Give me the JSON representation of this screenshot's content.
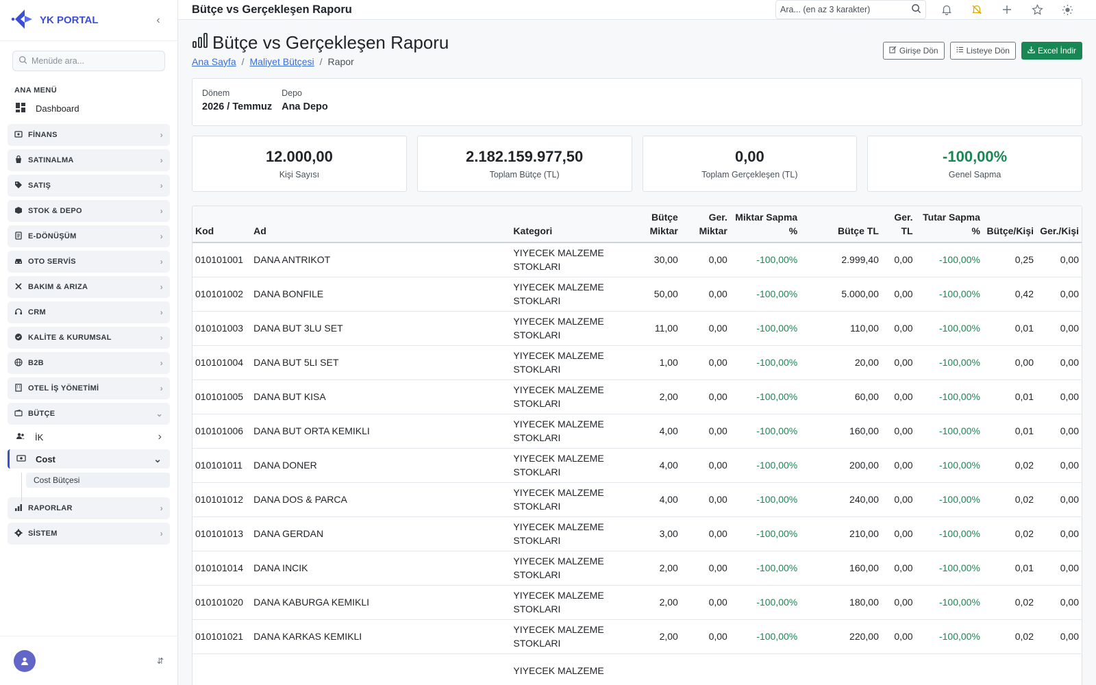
{
  "brand": {
    "name": "YK PORTAL"
  },
  "sidebar": {
    "search_placeholder": "Menüde ara...",
    "heading": "ANA MENÜ",
    "dashboard": "Dashboard",
    "groups": [
      {
        "label": "FİNANS",
        "icon": "finance-icon"
      },
      {
        "label": "SATINALMA",
        "icon": "bag-icon"
      },
      {
        "label": "SATIŞ",
        "icon": "tag-icon"
      },
      {
        "label": "STOK & DEPO",
        "icon": "box-icon"
      },
      {
        "label": "E-DÖNÜŞÜM",
        "icon": "document-icon"
      },
      {
        "label": "OTO SERVİS",
        "icon": "car-icon"
      },
      {
        "label": "BAKIM & ARIZA",
        "icon": "tools-icon"
      },
      {
        "label": "CRM",
        "icon": "headset-icon"
      },
      {
        "label": "KALİTE & KURUMSAL",
        "icon": "badge-icon"
      },
      {
        "label": "B2B",
        "icon": "globe-icon"
      },
      {
        "label": "OTEL İŞ YÖNETİMİ",
        "icon": "building-icon"
      },
      {
        "label": "BÜTÇE",
        "icon": "wallet-icon"
      }
    ],
    "budget_children": {
      "ik": "İK",
      "cost": "Cost",
      "cost_budget": "Cost Bütçesi"
    },
    "groups_after": [
      {
        "label": "RAPORLAR",
        "icon": "bar-chart-icon"
      },
      {
        "label": "SİSTEM",
        "icon": "gear-icon"
      }
    ]
  },
  "topbar": {
    "title": "Bütçe vs Gerçekleşen Raporu",
    "search_placeholder": "Ara... (en az 3 karakter)"
  },
  "page": {
    "title": "Bütçe vs Gerçekleşen Raporu",
    "breadcrumb": {
      "home": "Ana Sayfa",
      "parent": "Maliyet Bütçesi",
      "current": "Rapor",
      "sep": "/"
    },
    "buttons": {
      "back_home": "Girişe Dön",
      "back_list": "Listeye Dön",
      "excel": "Excel İndir"
    }
  },
  "filters": {
    "period_label": "Dönem",
    "period_value": "2026 / Temmuz",
    "depot_label": "Depo",
    "depot_value": "Ana Depo"
  },
  "stats": [
    {
      "value": "12.000,00",
      "label": "Kişi Sayısı"
    },
    {
      "value": "2.182.159.977,50",
      "label": "Toplam Bütçe (TL)"
    },
    {
      "value": "0,00",
      "label": "Toplam Gerçekleşen (TL)"
    },
    {
      "value": "-100,00%",
      "label": "Genel Sapma",
      "color": "#198754"
    }
  ],
  "table": {
    "headers": {
      "kod": "Kod",
      "ad": "Ad",
      "kategori": "Kategori",
      "butce_miktar_1": "Bütçe",
      "butce_miktar_2": "Miktar",
      "ger_miktar_1": "Ger.",
      "ger_miktar_2": "Miktar",
      "miktar_sapma_1": "Miktar Sapma",
      "miktar_sapma_2": "%",
      "butce_tl": "Bütçe TL",
      "ger_tl_1": "Ger.",
      "ger_tl_2": "TL",
      "tutar_sapma_1": "Tutar Sapma",
      "tutar_sapma_2": "%",
      "butce_kisi": "Bütçe/Kişi",
      "ger_kisi": "Ger./Kişi"
    },
    "rows": [
      {
        "kod": "010101001",
        "ad": "DANA ANTRIKOT",
        "kat1": "YIYECEK MALZEME",
        "kat2": "STOKLARI",
        "bm": "30,00",
        "gm": "0,00",
        "ms": "-100,00%",
        "btl": "2.999,40",
        "gtl": "0,00",
        "ts": "-100,00%",
        "bk": "0,25",
        "gk": "0,00"
      },
      {
        "kod": "010101002",
        "ad": "DANA BONFILE",
        "kat1": "YIYECEK MALZEME",
        "kat2": "STOKLARI",
        "bm": "50,00",
        "gm": "0,00",
        "ms": "-100,00%",
        "btl": "5.000,00",
        "gtl": "0,00",
        "ts": "-100,00%",
        "bk": "0,42",
        "gk": "0,00"
      },
      {
        "kod": "010101003",
        "ad": "DANA BUT 3LU SET",
        "kat1": "YIYECEK MALZEME",
        "kat2": "STOKLARI",
        "bm": "11,00",
        "gm": "0,00",
        "ms": "-100,00%",
        "btl": "110,00",
        "gtl": "0,00",
        "ts": "-100,00%",
        "bk": "0,01",
        "gk": "0,00"
      },
      {
        "kod": "010101004",
        "ad": "DANA BUT 5LI SET",
        "kat1": "YIYECEK MALZEME",
        "kat2": "STOKLARI",
        "bm": "1,00",
        "gm": "0,00",
        "ms": "-100,00%",
        "btl": "20,00",
        "gtl": "0,00",
        "ts": "-100,00%",
        "bk": "0,00",
        "gk": "0,00"
      },
      {
        "kod": "010101005",
        "ad": "DANA BUT KISA",
        "kat1": "YIYECEK MALZEME",
        "kat2": "STOKLARI",
        "bm": "2,00",
        "gm": "0,00",
        "ms": "-100,00%",
        "btl": "60,00",
        "gtl": "0,00",
        "ts": "-100,00%",
        "bk": "0,01",
        "gk": "0,00"
      },
      {
        "kod": "010101006",
        "ad": "DANA BUT ORTA KEMIKLI",
        "kat1": "YIYECEK MALZEME",
        "kat2": "STOKLARI",
        "bm": "4,00",
        "gm": "0,00",
        "ms": "-100,00%",
        "btl": "160,00",
        "gtl": "0,00",
        "ts": "-100,00%",
        "bk": "0,01",
        "gk": "0,00"
      },
      {
        "kod": "010101011",
        "ad": "DANA DONER",
        "kat1": "YIYECEK MALZEME",
        "kat2": "STOKLARI",
        "bm": "4,00",
        "gm": "0,00",
        "ms": "-100,00%",
        "btl": "200,00",
        "gtl": "0,00",
        "ts": "-100,00%",
        "bk": "0,02",
        "gk": "0,00"
      },
      {
        "kod": "010101012",
        "ad": "DANA DOS & PARCA",
        "kat1": "YIYECEK MALZEME",
        "kat2": "STOKLARI",
        "bm": "4,00",
        "gm": "0,00",
        "ms": "-100,00%",
        "btl": "240,00",
        "gtl": "0,00",
        "ts": "-100,00%",
        "bk": "0,02",
        "gk": "0,00"
      },
      {
        "kod": "010101013",
        "ad": "DANA GERDAN",
        "kat1": "YIYECEK MALZEME",
        "kat2": "STOKLARI",
        "bm": "3,00",
        "gm": "0,00",
        "ms": "-100,00%",
        "btl": "210,00",
        "gtl": "0,00",
        "ts": "-100,00%",
        "bk": "0,02",
        "gk": "0,00"
      },
      {
        "kod": "010101014",
        "ad": "DANA INCIK",
        "kat1": "YIYECEK MALZEME",
        "kat2": "STOKLARI",
        "bm": "2,00",
        "gm": "0,00",
        "ms": "-100,00%",
        "btl": "160,00",
        "gtl": "0,00",
        "ts": "-100,00%",
        "bk": "0,01",
        "gk": "0,00"
      },
      {
        "kod": "010101020",
        "ad": "DANA KABURGA KEMIKLI",
        "kat1": "YIYECEK MALZEME",
        "kat2": "STOKLARI",
        "bm": "2,00",
        "gm": "0,00",
        "ms": "-100,00%",
        "btl": "180,00",
        "gtl": "0,00",
        "ts": "-100,00%",
        "bk": "0,02",
        "gk": "0,00"
      },
      {
        "kod": "010101021",
        "ad": "DANA KARKAS KEMIKLI",
        "kat1": "YIYECEK MALZEME",
        "kat2": "STOKLARI",
        "bm": "2,00",
        "gm": "0,00",
        "ms": "-100,00%",
        "btl": "220,00",
        "gtl": "0,00",
        "ts": "-100,00%",
        "bk": "0,02",
        "gk": "0,00"
      },
      {
        "kod": "",
        "ad": "",
        "kat1": "YIYECEK MALZEME",
        "kat2": "",
        "bm": "",
        "gm": "",
        "ms": "",
        "btl": "",
        "gtl": "",
        "ts": "",
        "bk": "",
        "gk": ""
      }
    ]
  },
  "colors": {
    "accent": "#3a4fd8",
    "success": "#198754"
  }
}
